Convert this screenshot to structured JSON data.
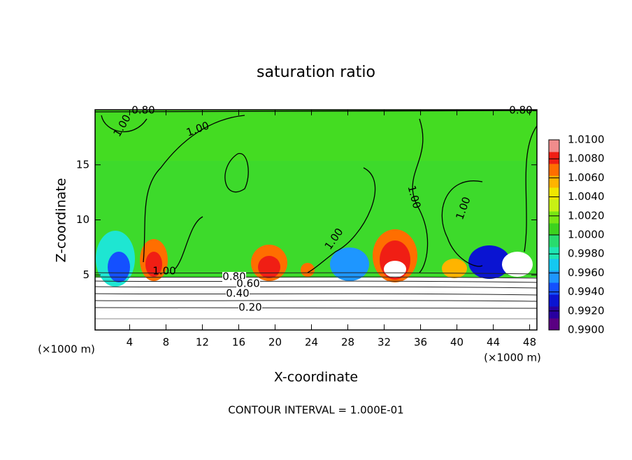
{
  "chart_data": {
    "type": "contour",
    "title": "saturation ratio",
    "x_label": "X-coordinate",
    "y_label": "Z-coordinate",
    "x_unit_left": "(×1000 m)",
    "x_unit_right": "(×1000 m)",
    "footnote": "CONTOUR INTERVAL = 1.000E-01",
    "xlim": [
      0.2,
      48.8
    ],
    "xticks": [
      4,
      8,
      12,
      16,
      20,
      24,
      28,
      32,
      36,
      40,
      44,
      48
    ],
    "ylim": [
      0,
      20
    ],
    "yticks": [
      5,
      10,
      15
    ],
    "colorbar_lim": [
      0.99,
      1.01
    ],
    "colorbar_ticks": [
      {
        "value": 1.01,
        "label": "1.0100"
      },
      {
        "value": 1.008,
        "label": "1.0080"
      },
      {
        "value": 1.006,
        "label": "1.0060"
      },
      {
        "value": 1.004,
        "label": "1.0040"
      },
      {
        "value": 1.002,
        "label": "1.0020"
      },
      {
        "value": 1.0,
        "label": "1.0000"
      },
      {
        "value": 0.998,
        "label": "0.9980"
      },
      {
        "value": 0.996,
        "label": "0.9960"
      },
      {
        "value": 0.994,
        "label": "0.9940"
      },
      {
        "value": 0.992,
        "label": "0.9920"
      },
      {
        "value": 0.99,
        "label": "0.9900"
      }
    ],
    "colorbar_colors": [
      "#5a0082",
      "#2800a0",
      "#0a14d2",
      "#1450ff",
      "#1e96ff",
      "#14c8f0",
      "#1ee6b4",
      "#28dc6e",
      "#3cd21e",
      "#78e614",
      "#c8f014",
      "#f0e600",
      "#ffb400",
      "#ff6e00",
      "#f01e14",
      "#f08c8c"
    ],
    "contour_labels": [
      "0.80",
      "0.80",
      "1.00",
      "1.00",
      "1.00",
      "1.00",
      "1.00",
      "1.00",
      "0.80",
      "0.60",
      "0.40",
      "0.20"
    ]
  }
}
